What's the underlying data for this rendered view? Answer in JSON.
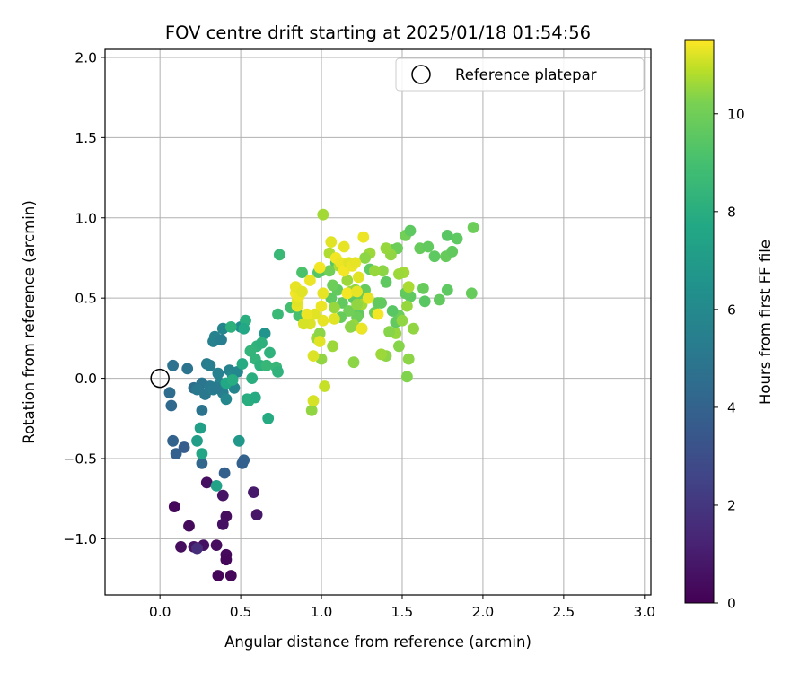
{
  "chart_data": {
    "type": "scatter",
    "title": "FOV centre drift starting at 2025/01/18 01:54:56",
    "xlabel": "Angular distance from reference (arcmin)",
    "ylabel": "Rotation from reference (arcmin)",
    "xlim": [
      -0.34,
      3.04
    ],
    "ylim": [
      -1.35,
      2.05
    ],
    "xticks": [
      0.0,
      0.5,
      1.0,
      1.5,
      2.0,
      2.5,
      3.0
    ],
    "xtick_labels": [
      "0.0",
      "0.5",
      "1.0",
      "1.5",
      "2.0",
      "2.5",
      "3.0"
    ],
    "yticks": [
      -1.0,
      -0.5,
      0.0,
      0.5,
      1.0,
      1.5,
      2.0
    ],
    "ytick_labels": [
      "−1.0",
      "−0.5",
      "0.0",
      "0.5",
      "1.0",
      "1.5",
      "2.0"
    ],
    "grid": true,
    "legend": {
      "placement": "upper right",
      "entries": [
        "Reference platepar"
      ]
    },
    "reference_point": {
      "x": 0.0,
      "y": 0.0
    },
    "colorbar": {
      "label": "Hours from first FF file",
      "range": [
        0,
        11.5
      ],
      "ticks": [
        0,
        2,
        4,
        6,
        8,
        10
      ],
      "tick_labels": [
        "0",
        "2",
        "4",
        "6",
        "8",
        "10"
      ],
      "colormap": "viridis"
    },
    "points": [
      {
        "x": 0.09,
        "y": -0.8,
        "c": 0.2
      },
      {
        "x": 0.18,
        "y": -0.92,
        "c": 0.3
      },
      {
        "x": 0.13,
        "y": -1.05,
        "c": 0.4
      },
      {
        "x": 0.21,
        "y": -1.05,
        "c": 0.6
      },
      {
        "x": 0.27,
        "y": -1.04,
        "c": 0.5
      },
      {
        "x": 0.35,
        "y": -1.04,
        "c": 0.4
      },
      {
        "x": 0.41,
        "y": -1.1,
        "c": 0.3
      },
      {
        "x": 0.41,
        "y": -1.13,
        "c": 0.2
      },
      {
        "x": 0.36,
        "y": -1.23,
        "c": 0.1
      },
      {
        "x": 0.44,
        "y": -1.23,
        "c": 0.2
      },
      {
        "x": 0.29,
        "y": -0.65,
        "c": 0.5
      },
      {
        "x": 0.39,
        "y": -0.73,
        "c": 0.6
      },
      {
        "x": 0.41,
        "y": -0.86,
        "c": 0.4
      },
      {
        "x": 0.39,
        "y": -0.91,
        "c": 0.5
      },
      {
        "x": 0.58,
        "y": -0.71,
        "c": 0.8
      },
      {
        "x": 0.6,
        "y": -0.85,
        "c": 0.7
      },
      {
        "x": 0.23,
        "y": -1.06,
        "c": 1.5
      },
      {
        "x": 0.4,
        "y": -0.59,
        "c": 3.5
      },
      {
        "x": 0.52,
        "y": -0.51,
        "c": 3.6
      },
      {
        "x": 0.51,
        "y": -0.53,
        "c": 3.5
      },
      {
        "x": 0.08,
        "y": -0.39,
        "c": 3.6
      },
      {
        "x": 0.1,
        "y": -0.47,
        "c": 3.5
      },
      {
        "x": 0.15,
        "y": -0.43,
        "c": 3.4
      },
      {
        "x": 0.26,
        "y": -0.53,
        "c": 3.8
      },
      {
        "x": 0.07,
        "y": -0.17,
        "c": 3.9
      },
      {
        "x": 0.06,
        "y": -0.09,
        "c": 4.1
      },
      {
        "x": 0.08,
        "y": 0.08,
        "c": 4.3
      },
      {
        "x": 0.17,
        "y": 0.06,
        "c": 4.4
      },
      {
        "x": 0.21,
        "y": -0.06,
        "c": 4.2
      },
      {
        "x": 0.26,
        "y": -0.03,
        "c": 4.5
      },
      {
        "x": 0.28,
        "y": -0.1,
        "c": 4.6
      },
      {
        "x": 0.26,
        "y": -0.2,
        "c": 4.4
      },
      {
        "x": 0.31,
        "y": -0.05,
        "c": 4.7
      },
      {
        "x": 0.29,
        "y": 0.09,
        "c": 4.8
      },
      {
        "x": 0.33,
        "y": 0.23,
        "c": 5.0
      },
      {
        "x": 0.34,
        "y": 0.26,
        "c": 5.1
      },
      {
        "x": 0.38,
        "y": 0.24,
        "c": 4.9
      },
      {
        "x": 0.39,
        "y": 0.31,
        "c": 5.2
      },
      {
        "x": 0.36,
        "y": 0.03,
        "c": 5.0
      },
      {
        "x": 0.39,
        "y": -0.09,
        "c": 4.9
      },
      {
        "x": 0.41,
        "y": -0.13,
        "c": 5.3
      },
      {
        "x": 0.43,
        "y": 0.05,
        "c": 5.1
      },
      {
        "x": 0.45,
        "y": 0.02,
        "c": 5.4
      },
      {
        "x": 0.48,
        "y": 0.04,
        "c": 5.3
      },
      {
        "x": 0.46,
        "y": -0.06,
        "c": 5.2
      },
      {
        "x": 0.5,
        "y": 0.32,
        "c": 5.6
      },
      {
        "x": 0.33,
        "y": -0.07,
        "c": 4.8
      },
      {
        "x": 0.37,
        "y": -0.03,
        "c": 5.0
      },
      {
        "x": 0.35,
        "y": -0.06,
        "c": 4.7
      },
      {
        "x": 0.23,
        "y": -0.07,
        "c": 4.6
      },
      {
        "x": 0.31,
        "y": 0.08,
        "c": 4.9
      },
      {
        "x": 0.65,
        "y": 0.28,
        "c": 5.9
      },
      {
        "x": 0.49,
        "y": -0.39,
        "c": 6.1
      },
      {
        "x": 0.23,
        "y": -0.39,
        "c": 6.4
      },
      {
        "x": 0.25,
        "y": -0.31,
        "c": 6.5
      },
      {
        "x": 0.26,
        "y": -0.47,
        "c": 6.8
      },
      {
        "x": 0.35,
        "y": -0.67,
        "c": 6.6
      },
      {
        "x": 0.41,
        "y": -0.03,
        "c": 6.9
      },
      {
        "x": 0.45,
        "y": -0.01,
        "c": 7.1
      },
      {
        "x": 0.51,
        "y": 0.09,
        "c": 7.0
      },
      {
        "x": 0.53,
        "y": 0.36,
        "c": 7.2
      },
      {
        "x": 0.44,
        "y": 0.32,
        "c": 7.3
      },
      {
        "x": 0.52,
        "y": 0.31,
        "c": 6.9
      },
      {
        "x": 0.54,
        "y": -0.13,
        "c": 7.1
      },
      {
        "x": 0.55,
        "y": -0.14,
        "c": 7.2
      },
      {
        "x": 0.59,
        "y": -0.12,
        "c": 7.0
      },
      {
        "x": 0.6,
        "y": 0.2,
        "c": 7.4
      },
      {
        "x": 0.59,
        "y": 0.12,
        "c": 7.5
      },
      {
        "x": 0.62,
        "y": 0.08,
        "c": 7.3
      },
      {
        "x": 0.66,
        "y": 0.08,
        "c": 7.6
      },
      {
        "x": 0.68,
        "y": 0.16,
        "c": 7.4
      },
      {
        "x": 0.63,
        "y": 0.22,
        "c": 7.3
      },
      {
        "x": 0.72,
        "y": 0.07,
        "c": 7.6
      },
      {
        "x": 0.73,
        "y": 0.04,
        "c": 7.4
      },
      {
        "x": 0.56,
        "y": 0.17,
        "c": 7.5
      },
      {
        "x": 0.73,
        "y": 0.4,
        "c": 7.7
      },
      {
        "x": 0.74,
        "y": 0.77,
        "c": 7.7
      },
      {
        "x": 0.67,
        "y": -0.25,
        "c": 7.0
      },
      {
        "x": 0.57,
        "y": 0.0,
        "c": 7.2
      },
      {
        "x": 0.81,
        "y": 0.44,
        "c": 8.0
      },
      {
        "x": 0.86,
        "y": 0.39,
        "c": 8.1
      },
      {
        "x": 0.88,
        "y": 0.66,
        "c": 8.2
      },
      {
        "x": 0.98,
        "y": 0.66,
        "c": 8.4
      },
      {
        "x": 1.0,
        "y": 0.67,
        "c": 8.5
      },
      {
        "x": 1.06,
        "y": 0.5,
        "c": 8.6
      },
      {
        "x": 1.09,
        "y": 0.72,
        "c": 8.5
      },
      {
        "x": 1.13,
        "y": 0.47,
        "c": 8.7
      },
      {
        "x": 1.2,
        "y": 0.5,
        "c": 8.6
      },
      {
        "x": 1.27,
        "y": 0.55,
        "c": 8.8
      },
      {
        "x": 1.33,
        "y": 0.41,
        "c": 8.9
      },
      {
        "x": 1.37,
        "y": 0.47,
        "c": 8.7
      },
      {
        "x": 1.4,
        "y": 0.6,
        "c": 8.6
      },
      {
        "x": 1.44,
        "y": 0.8,
        "c": 8.8
      },
      {
        "x": 1.47,
        "y": 0.81,
        "c": 8.9
      },
      {
        "x": 1.52,
        "y": 0.89,
        "c": 9.0
      },
      {
        "x": 1.55,
        "y": 0.92,
        "c": 8.6
      },
      {
        "x": 1.61,
        "y": 0.81,
        "c": 8.8
      },
      {
        "x": 1.66,
        "y": 0.82,
        "c": 8.7
      },
      {
        "x": 1.7,
        "y": 0.76,
        "c": 8.6
      },
      {
        "x": 1.77,
        "y": 0.76,
        "c": 8.8
      },
      {
        "x": 1.78,
        "y": 0.89,
        "c": 8.5
      },
      {
        "x": 1.84,
        "y": 0.87,
        "c": 8.6
      },
      {
        "x": 1.81,
        "y": 0.79,
        "c": 8.7
      },
      {
        "x": 1.94,
        "y": 0.94,
        "c": 8.9
      },
      {
        "x": 1.93,
        "y": 0.53,
        "c": 8.8
      },
      {
        "x": 1.78,
        "y": 0.55,
        "c": 8.6
      },
      {
        "x": 1.73,
        "y": 0.49,
        "c": 8.7
      },
      {
        "x": 1.64,
        "y": 0.48,
        "c": 8.5
      },
      {
        "x": 1.63,
        "y": 0.56,
        "c": 8.8
      },
      {
        "x": 1.55,
        "y": 0.51,
        "c": 8.6
      },
      {
        "x": 1.52,
        "y": 0.53,
        "c": 8.7
      },
      {
        "x": 1.48,
        "y": 0.39,
        "c": 8.9
      },
      {
        "x": 1.46,
        "y": 0.35,
        "c": 8.7
      },
      {
        "x": 1.44,
        "y": 0.42,
        "c": 8.5
      },
      {
        "x": 1.35,
        "y": 0.47,
        "c": 8.7
      },
      {
        "x": 1.3,
        "y": 0.68,
        "c": 8.6
      },
      {
        "x": 1.26,
        "y": 0.51,
        "c": 8.8
      },
      {
        "x": 1.23,
        "y": 0.4,
        "c": 8.7
      },
      {
        "x": 1.22,
        "y": 0.38,
        "c": 8.9
      },
      {
        "x": 1.17,
        "y": 0.42,
        "c": 9.0
      },
      {
        "x": 1.12,
        "y": 0.38,
        "c": 8.8
      },
      {
        "x": 1.1,
        "y": 0.55,
        "c": 8.7
      },
      {
        "x": 1.07,
        "y": 0.58,
        "c": 8.9
      },
      {
        "x": 1.05,
        "y": 0.67,
        "c": 9.0
      },
      {
        "x": 1.53,
        "y": 0.01,
        "c": 9.3
      },
      {
        "x": 1.54,
        "y": 0.12,
        "c": 9.5
      },
      {
        "x": 1.57,
        "y": 0.31,
        "c": 9.6
      },
      {
        "x": 1.48,
        "y": 0.2,
        "c": 9.4
      },
      {
        "x": 1.46,
        "y": 0.28,
        "c": 9.7
      },
      {
        "x": 1.4,
        "y": 0.14,
        "c": 9.5
      },
      {
        "x": 1.37,
        "y": 0.15,
        "c": 9.8
      },
      {
        "x": 1.42,
        "y": 0.29,
        "c": 9.4
      },
      {
        "x": 1.5,
        "y": 0.36,
        "c": 9.6
      },
      {
        "x": 1.53,
        "y": 0.45,
        "c": 9.7
      },
      {
        "x": 1.51,
        "y": 0.66,
        "c": 9.9
      },
      {
        "x": 1.54,
        "y": 0.57,
        "c": 10.0
      },
      {
        "x": 1.48,
        "y": 0.65,
        "c": 9.8
      },
      {
        "x": 1.43,
        "y": 0.77,
        "c": 9.6
      },
      {
        "x": 1.4,
        "y": 0.81,
        "c": 9.7
      },
      {
        "x": 1.38,
        "y": 0.67,
        "c": 9.5
      },
      {
        "x": 1.33,
        "y": 0.67,
        "c": 9.7
      },
      {
        "x": 1.3,
        "y": 0.78,
        "c": 9.8
      },
      {
        "x": 1.27,
        "y": 0.75,
        "c": 9.5
      },
      {
        "x": 1.25,
        "y": 0.46,
        "c": 9.9
      },
      {
        "x": 1.22,
        "y": 0.46,
        "c": 9.6
      },
      {
        "x": 1.25,
        "y": 0.31,
        "c": 9.8
      },
      {
        "x": 1.2,
        "y": 0.33,
        "c": 9.7
      },
      {
        "x": 1.18,
        "y": 0.32,
        "c": 9.5
      },
      {
        "x": 1.16,
        "y": 0.61,
        "c": 9.8
      },
      {
        "x": 1.18,
        "y": 0.54,
        "c": 9.9
      },
      {
        "x": 1.21,
        "y": 0.55,
        "c": 9.6
      },
      {
        "x": 1.08,
        "y": 0.44,
        "c": 9.7
      },
      {
        "x": 1.07,
        "y": 0.2,
        "c": 9.8
      },
      {
        "x": 1.0,
        "y": 0.12,
        "c": 9.6
      },
      {
        "x": 0.97,
        "y": 0.25,
        "c": 9.8
      },
      {
        "x": 0.99,
        "y": 0.28,
        "c": 9.5
      },
      {
        "x": 1.01,
        "y": 1.02,
        "c": 9.9
      },
      {
        "x": 1.11,
        "y": 0.7,
        "c": 10.0
      },
      {
        "x": 1.05,
        "y": 0.78,
        "c": 10.1
      },
      {
        "x": 1.2,
        "y": 0.1,
        "c": 9.5
      },
      {
        "x": 0.94,
        "y": -0.2,
        "c": 9.6
      },
      {
        "x": 1.02,
        "y": -0.05,
        "c": 10.5
      },
      {
        "x": 0.95,
        "y": -0.14,
        "c": 10.8
      },
      {
        "x": 0.95,
        "y": 0.14,
        "c": 10.9
      },
      {
        "x": 0.99,
        "y": 0.23,
        "c": 11.0
      },
      {
        "x": 1.01,
        "y": 0.36,
        "c": 11.1
      },
      {
        "x": 0.96,
        "y": 0.4,
        "c": 11.0
      },
      {
        "x": 0.93,
        "y": 0.34,
        "c": 10.9
      },
      {
        "x": 0.89,
        "y": 0.34,
        "c": 10.8
      },
      {
        "x": 0.91,
        "y": 0.4,
        "c": 11.2
      },
      {
        "x": 0.85,
        "y": 0.45,
        "c": 11.1
      },
      {
        "x": 0.85,
        "y": 0.48,
        "c": 11.0
      },
      {
        "x": 0.84,
        "y": 0.53,
        "c": 11.3
      },
      {
        "x": 0.86,
        "y": 0.51,
        "c": 11.2
      },
      {
        "x": 0.84,
        "y": 0.57,
        "c": 11.1
      },
      {
        "x": 0.88,
        "y": 0.54,
        "c": 11.0
      },
      {
        "x": 0.93,
        "y": 0.61,
        "c": 11.2
      },
      {
        "x": 0.99,
        "y": 0.69,
        "c": 11.3
      },
      {
        "x": 1.01,
        "y": 0.53,
        "c": 11.1
      },
      {
        "x": 1.0,
        "y": 0.45,
        "c": 11.2
      },
      {
        "x": 1.06,
        "y": 0.85,
        "c": 11.0
      },
      {
        "x": 1.09,
        "y": 0.75,
        "c": 11.3
      },
      {
        "x": 1.12,
        "y": 0.72,
        "c": 11.2
      },
      {
        "x": 1.14,
        "y": 0.82,
        "c": 11.1
      },
      {
        "x": 1.14,
        "y": 0.67,
        "c": 11.3
      },
      {
        "x": 1.17,
        "y": 0.72,
        "c": 11.0
      },
      {
        "x": 1.19,
        "y": 0.7,
        "c": 11.2
      },
      {
        "x": 1.21,
        "y": 0.72,
        "c": 11.1
      },
      {
        "x": 1.16,
        "y": 0.53,
        "c": 11.3
      },
      {
        "x": 1.23,
        "y": 0.63,
        "c": 11.0
      },
      {
        "x": 1.26,
        "y": 0.88,
        "c": 11.2
      },
      {
        "x": 1.29,
        "y": 0.5,
        "c": 11.1
      },
      {
        "x": 1.35,
        "y": 0.4,
        "c": 11.3
      },
      {
        "x": 1.08,
        "y": 0.37,
        "c": 11.0
      },
      {
        "x": 1.25,
        "y": 0.31,
        "c": 11.2
      },
      {
        "x": 1.22,
        "y": 0.54,
        "c": 11.1
      }
    ]
  }
}
